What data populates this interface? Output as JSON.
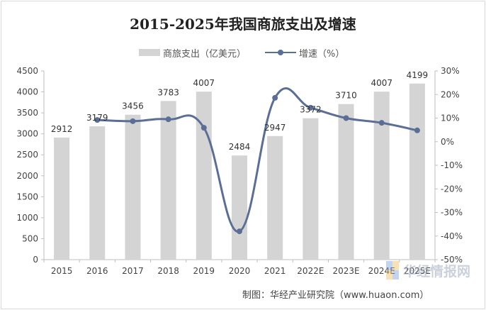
{
  "title": "2015-2025年我国商旅支出及增速",
  "legend": {
    "bar_label": "商旅支出（亿美元）",
    "line_label": "增速（%）"
  },
  "source": "制图：华经产业研究院（www.huaon.com）",
  "watermark": "华经情报网",
  "colors": {
    "bar": "#d4d4d4",
    "line": "#5b6f96"
  },
  "chart_data": {
    "type": "bar",
    "title": "2015-2025年我国商旅支出及增速",
    "categories": [
      "2015",
      "2016",
      "2017",
      "2018",
      "2019",
      "2020",
      "2021",
      "2022E",
      "2023E",
      "2024E",
      "2025E"
    ],
    "series": [
      {
        "name": "商旅支出（亿美元）",
        "type": "bar",
        "axis": "left",
        "values": [
          2912,
          3179,
          3456,
          3783,
          4007,
          2484,
          2947,
          3372,
          3710,
          4007,
          4199
        ]
      },
      {
        "name": "增速（%）",
        "type": "line",
        "axis": "right",
        "smooth": true,
        "values": [
          null,
          9.2,
          8.7,
          9.5,
          5.9,
          -38.0,
          18.6,
          14.4,
          10.0,
          8.0,
          4.8
        ]
      }
    ],
    "ylim": [
      0,
      4500
    ],
    "yticks": [
      0,
      500,
      1000,
      1500,
      2000,
      2500,
      3000,
      3500,
      4000,
      4500
    ],
    "y2lim": [
      -50,
      30
    ],
    "y2ticks": [
      "-50%",
      "-40%",
      "-30%",
      "-20%",
      "-10%",
      "0%",
      "10%",
      "20%",
      "30%"
    ],
    "y2tick_values": [
      -50,
      -40,
      -30,
      -20,
      -10,
      0,
      10,
      20,
      30
    ],
    "legend_position": "top",
    "grid": false
  }
}
